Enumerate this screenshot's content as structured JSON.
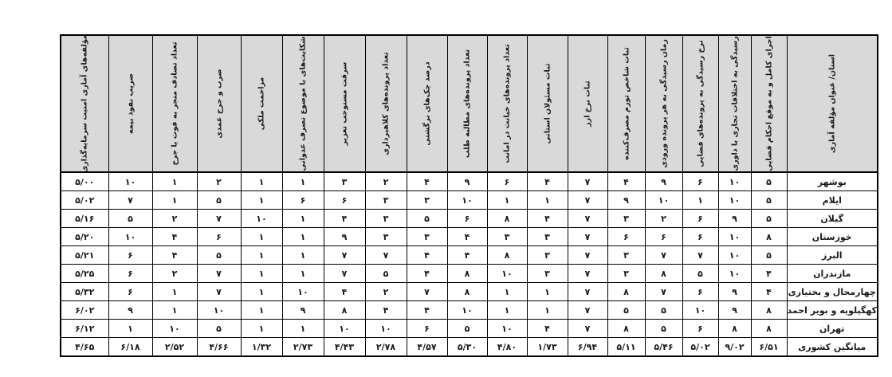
{
  "colors": {
    "header_bg": "#d9d9d9",
    "border": "#000000",
    "text": "#1a1a1a",
    "cell_bg": "#ffffff"
  },
  "table": {
    "row_header_label": "استان/ عنوان مؤلفه آماری",
    "columns": [
      "اجرای کامل و به موقع احکام قضایی",
      "رسیدگی به اختلافات تجاری با داوری",
      "نرخ رسیدگی به پرونده‌های قضایی",
      "زمان رسیدگی به هر پرونده ورودی",
      "ثبات شاخص تورم مصرف‌کننده",
      "ثبات نرخ ارز",
      "ثبات مسئولان استانی",
      "تعداد پرونده‌های خیانت در امانت",
      "تعداد پرونده‌های مطالبه طلب",
      "درصد چک‌های برگشتی",
      "تعداد پرونده‌های کلاهبرداری",
      "سرقت مستوجب تعزیر",
      "شکایت‌های با موضوع تصرف عدوانی",
      "مزاحمت ملکی",
      "ضرب و جرح عمدی",
      "تعداد تصادف منجر به فوت یا جرح",
      "ضریب نفوذ بیمه",
      "مؤلفه‌های آماری امنیت سرمایه‌گذاری"
    ],
    "rows": [
      {
        "province": "بوشهر",
        "values": [
          "۵",
          "۱۰",
          "۶",
          "۹",
          "۴",
          "۷",
          "۴",
          "۶",
          "۹",
          "۴",
          "۲",
          "۳",
          "۱",
          "۱",
          "۲",
          "۱",
          "۱۰",
          "۵/۰۰"
        ]
      },
      {
        "province": "ایلام",
        "values": [
          "۵",
          "۱۰",
          "۱",
          "۱۰",
          "۹",
          "۷",
          "۱",
          "۱",
          "۱۰",
          "۳",
          "۳",
          "۶",
          "۶",
          "۱",
          "۵",
          "۱",
          "۷",
          "۵/۰۲"
        ]
      },
      {
        "province": "گیلان",
        "values": [
          "۵",
          "۹",
          "۶",
          "۲",
          "۳",
          "۷",
          "۴",
          "۸",
          "۶",
          "۵",
          "۳",
          "۴",
          "۱",
          "۱۰",
          "۷",
          "۲",
          "۵",
          "۵/۱۶"
        ]
      },
      {
        "province": "خوزستان",
        "values": [
          "۸",
          "۱۰",
          "۶",
          "۶",
          "۶",
          "۷",
          "۳",
          "۳",
          "۴",
          "۳",
          "۳",
          "۹",
          "۱",
          "۱",
          "۶",
          "۴",
          "۱۰",
          "۵/۲۰"
        ]
      },
      {
        "province": "البرز",
        "values": [
          "۵",
          "۱۰",
          "۷",
          "۷",
          "۳",
          "۷",
          "۳",
          "۸",
          "۴",
          "۴",
          "۷",
          "۷",
          "۱",
          "۱",
          "۵",
          "۴",
          "۶",
          "۵/۲۱"
        ]
      },
      {
        "province": "مازندران",
        "values": [
          "۴",
          "۱۰",
          "۵",
          "۸",
          "۳",
          "۷",
          "۳",
          "۱۰",
          "۸",
          "۴",
          "۵",
          "۷",
          "۱",
          "۱",
          "۷",
          "۲",
          "۶",
          "۵/۲۵"
        ]
      },
      {
        "province": "چهارمحال و بختیاری",
        "values": [
          "۴",
          "۹",
          "۶",
          "۷",
          "۸",
          "۷",
          "۱",
          "۱",
          "۸",
          "۷",
          "۲",
          "۴",
          "۱۰",
          "۱",
          "۷",
          "۱",
          "۶",
          "۵/۳۲"
        ]
      },
      {
        "province": "کهگیلویه و بویر احمد",
        "values": [
          "۸",
          "۹",
          "۱۰",
          "۵",
          "۵",
          "۷",
          "۱",
          "۱",
          "۱۰",
          "۴",
          "۴",
          "۸",
          "۹",
          "۱",
          "۱۰",
          "۱",
          "۹",
          "۶/۰۲"
        ]
      },
      {
        "province": "تهران",
        "values": [
          "۸",
          "۸",
          "۶",
          "۵",
          "۸",
          "۷",
          "۴",
          "۱۰",
          "۵",
          "۶",
          "۱۰",
          "۱۰",
          "۱",
          "۱",
          "۵",
          "۱۰",
          "۱",
          "۶/۱۲"
        ]
      },
      {
        "province": "میانگین کشوری",
        "values": [
          "۶/۵۱",
          "۹/۰۲",
          "۵/۰۲",
          "۵/۴۶",
          "۵/۱۱",
          "۶/۹۴",
          "۱/۷۳",
          "۴/۸۰",
          "۵/۳۰",
          "۴/۵۷",
          "۲/۷۸",
          "۴/۴۳",
          "۲/۷۳",
          "۱/۳۲",
          "۴/۶۶",
          "۲/۵۲",
          "۶/۱۸",
          "۴/۶۵"
        ]
      }
    ]
  }
}
